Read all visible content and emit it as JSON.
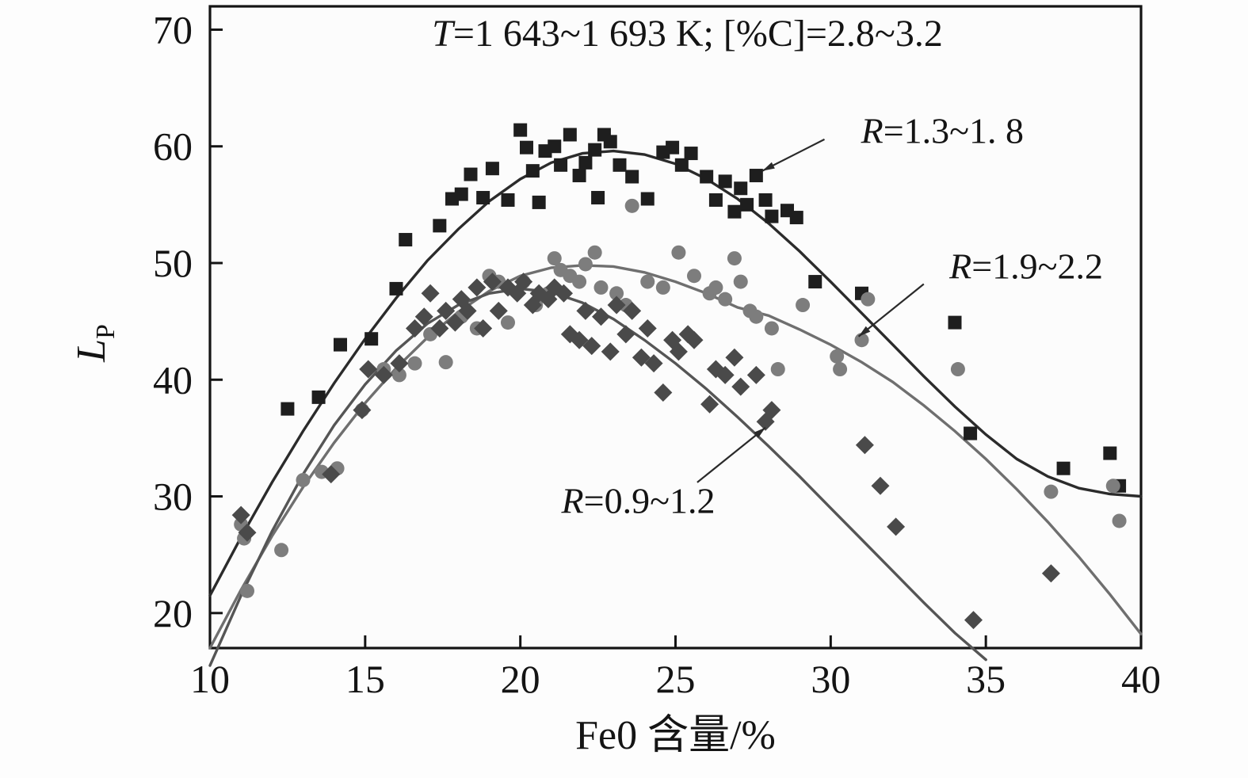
{
  "chart_data": {
    "type": "scatter",
    "title": "T=1 643~1 693 K;  [%C]=2.8~3.2",
    "xlabel": "Fe0 含量/%",
    "ylabel_main": "L",
    "ylabel_sub": "P",
    "xlim": [
      10,
      40
    ],
    "ylim": [
      17,
      72
    ],
    "xticks": [
      10,
      15,
      20,
      25,
      30,
      35,
      40
    ],
    "yticks": [
      20,
      30,
      40,
      50,
      60,
      70
    ],
    "grid": false,
    "legend_position": "annotated-arrows",
    "axis_color": "#141414",
    "series": [
      {
        "name": "R=1.3~1. 8",
        "marker": "square",
        "color": "#1e1e1e",
        "curve_color": "#2b2b2b",
        "points": [
          [
            12.5,
            37.5
          ],
          [
            13.5,
            38.5
          ],
          [
            14.2,
            43.0
          ],
          [
            15.2,
            43.5
          ],
          [
            16.0,
            47.8
          ],
          [
            16.3,
            52.0
          ],
          [
            17.4,
            53.2
          ],
          [
            17.8,
            55.5
          ],
          [
            18.1,
            55.9
          ],
          [
            18.4,
            57.6
          ],
          [
            18.8,
            55.6
          ],
          [
            19.1,
            58.1
          ],
          [
            19.6,
            55.4
          ],
          [
            20.0,
            61.4
          ],
          [
            20.2,
            59.9
          ],
          [
            20.4,
            57.9
          ],
          [
            20.6,
            55.2
          ],
          [
            20.8,
            59.6
          ],
          [
            21.1,
            60.0
          ],
          [
            21.3,
            58.4
          ],
          [
            21.6,
            61.0
          ],
          [
            21.9,
            57.5
          ],
          [
            22.1,
            58.6
          ],
          [
            22.4,
            59.7
          ],
          [
            22.5,
            55.6
          ],
          [
            22.7,
            61.0
          ],
          [
            22.9,
            60.4
          ],
          [
            23.2,
            58.4
          ],
          [
            23.6,
            57.4
          ],
          [
            24.1,
            55.5
          ],
          [
            24.6,
            59.5
          ],
          [
            24.9,
            59.9
          ],
          [
            25.2,
            58.4
          ],
          [
            25.5,
            59.4
          ],
          [
            26.0,
            57.4
          ],
          [
            26.3,
            55.4
          ],
          [
            26.6,
            57.0
          ],
          [
            26.9,
            54.4
          ],
          [
            27.1,
            56.4
          ],
          [
            27.3,
            55.0
          ],
          [
            27.6,
            57.5
          ],
          [
            27.9,
            55.4
          ],
          [
            28.1,
            54.0
          ],
          [
            28.6,
            54.5
          ],
          [
            28.9,
            53.9
          ],
          [
            29.5,
            48.4
          ],
          [
            31.0,
            47.4
          ],
          [
            34.0,
            44.9
          ],
          [
            34.5,
            35.4
          ],
          [
            37.5,
            32.4
          ],
          [
            39.0,
            33.7
          ],
          [
            39.3,
            30.9
          ]
        ],
        "curve": [
          [
            10,
            21.5
          ],
          [
            11,
            26.5
          ],
          [
            12,
            31.2
          ],
          [
            13,
            35.6
          ],
          [
            14,
            39.7
          ],
          [
            15,
            43.5
          ],
          [
            16,
            47.0
          ],
          [
            17,
            50.2
          ],
          [
            18,
            52.9
          ],
          [
            19,
            55.3
          ],
          [
            20,
            57.2
          ],
          [
            21,
            58.6
          ],
          [
            22,
            59.4
          ],
          [
            23,
            59.6
          ],
          [
            24,
            59.3
          ],
          [
            25,
            58.5
          ],
          [
            26,
            57.2
          ],
          [
            27,
            55.5
          ],
          [
            28,
            53.4
          ],
          [
            29,
            51.0
          ],
          [
            30,
            48.4
          ],
          [
            31,
            45.7
          ],
          [
            32,
            43.0
          ],
          [
            33,
            40.3
          ],
          [
            34,
            37.7
          ],
          [
            35,
            35.3
          ],
          [
            36,
            33.2
          ],
          [
            37,
            31.7
          ],
          [
            38,
            30.7
          ],
          [
            39,
            30.2
          ],
          [
            40,
            30.0
          ]
        ]
      },
      {
        "name": "R=1.9~2.2",
        "marker": "circle",
        "color": "#7d7d7d",
        "curve_color": "#6f6f6f",
        "points": [
          [
            11.0,
            27.6
          ],
          [
            11.1,
            26.4
          ],
          [
            11.2,
            21.9
          ],
          [
            12.3,
            25.4
          ],
          [
            13.0,
            31.4
          ],
          [
            13.6,
            32.1
          ],
          [
            14.1,
            32.4
          ],
          [
            14.9,
            37.4
          ],
          [
            15.6,
            40.9
          ],
          [
            16.1,
            40.4
          ],
          [
            16.6,
            41.4
          ],
          [
            17.1,
            43.9
          ],
          [
            17.6,
            41.5
          ],
          [
            18.1,
            45.4
          ],
          [
            18.6,
            44.4
          ],
          [
            19.0,
            48.9
          ],
          [
            19.3,
            48.4
          ],
          [
            19.6,
            44.9
          ],
          [
            20.1,
            48.4
          ],
          [
            20.5,
            46.4
          ],
          [
            20.9,
            47.4
          ],
          [
            21.1,
            50.4
          ],
          [
            21.3,
            49.4
          ],
          [
            21.6,
            48.9
          ],
          [
            21.9,
            48.4
          ],
          [
            22.1,
            49.9
          ],
          [
            22.4,
            50.9
          ],
          [
            22.6,
            47.9
          ],
          [
            23.1,
            47.4
          ],
          [
            23.4,
            46.4
          ],
          [
            23.6,
            54.9
          ],
          [
            24.1,
            48.4
          ],
          [
            24.6,
            47.9
          ],
          [
            25.1,
            50.9
          ],
          [
            25.6,
            48.9
          ],
          [
            26.1,
            47.4
          ],
          [
            26.3,
            47.9
          ],
          [
            26.6,
            46.9
          ],
          [
            26.9,
            50.4
          ],
          [
            27.1,
            48.4
          ],
          [
            27.4,
            45.9
          ],
          [
            27.6,
            45.4
          ],
          [
            28.1,
            44.4
          ],
          [
            28.3,
            40.9
          ],
          [
            29.1,
            46.4
          ],
          [
            30.2,
            42.0
          ],
          [
            30.3,
            40.9
          ],
          [
            31.0,
            43.4
          ],
          [
            31.2,
            46.9
          ],
          [
            34.1,
            40.9
          ],
          [
            37.1,
            30.4
          ],
          [
            39.1,
            30.9
          ],
          [
            39.3,
            27.9
          ]
        ],
        "curve": [
          [
            10,
            17.0
          ],
          [
            11,
            22.0
          ],
          [
            12,
            26.6
          ],
          [
            13,
            30.8
          ],
          [
            14,
            34.6
          ],
          [
            15,
            38.0
          ],
          [
            16,
            41.0
          ],
          [
            17,
            43.6
          ],
          [
            18,
            45.8
          ],
          [
            19,
            47.6
          ],
          [
            20,
            48.9
          ],
          [
            21,
            49.6
          ],
          [
            22,
            49.8
          ],
          [
            23,
            49.7
          ],
          [
            24,
            49.2
          ],
          [
            25,
            48.4
          ],
          [
            26,
            47.4
          ],
          [
            27,
            46.2
          ],
          [
            28,
            45.5
          ],
          [
            29,
            44.3
          ],
          [
            30,
            43.0
          ],
          [
            31,
            41.5
          ],
          [
            32,
            39.8
          ],
          [
            33,
            37.8
          ],
          [
            34,
            35.6
          ],
          [
            35,
            33.2
          ],
          [
            36,
            30.6
          ],
          [
            37,
            27.8
          ],
          [
            38,
            24.8
          ],
          [
            39,
            21.6
          ],
          [
            40,
            18.2
          ]
        ]
      },
      {
        "name": "R=0.9~1.2",
        "marker": "diamond",
        "color": "#4a4a4a",
        "curve_color": "#555555",
        "points": [
          [
            11.0,
            28.4
          ],
          [
            11.2,
            26.9
          ],
          [
            13.9,
            31.9
          ],
          [
            14.9,
            37.4
          ],
          [
            15.1,
            40.9
          ],
          [
            15.6,
            40.4
          ],
          [
            16.1,
            41.4
          ],
          [
            16.6,
            44.4
          ],
          [
            16.9,
            45.4
          ],
          [
            17.1,
            47.4
          ],
          [
            17.4,
            44.4
          ],
          [
            17.6,
            45.9
          ],
          [
            17.9,
            44.9
          ],
          [
            18.1,
            46.9
          ],
          [
            18.3,
            45.9
          ],
          [
            18.6,
            47.9
          ],
          [
            18.8,
            44.4
          ],
          [
            19.1,
            48.4
          ],
          [
            19.3,
            45.9
          ],
          [
            19.6,
            47.9
          ],
          [
            19.9,
            47.4
          ],
          [
            20.1,
            48.4
          ],
          [
            20.4,
            46.4
          ],
          [
            20.6,
            47.4
          ],
          [
            20.9,
            46.9
          ],
          [
            21.1,
            47.9
          ],
          [
            21.4,
            47.4
          ],
          [
            21.6,
            43.9
          ],
          [
            21.9,
            43.4
          ],
          [
            22.1,
            45.9
          ],
          [
            22.3,
            42.9
          ],
          [
            22.6,
            45.4
          ],
          [
            22.9,
            42.4
          ],
          [
            23.1,
            46.4
          ],
          [
            23.4,
            43.9
          ],
          [
            23.6,
            45.9
          ],
          [
            23.9,
            41.9
          ],
          [
            24.1,
            44.4
          ],
          [
            24.3,
            41.4
          ],
          [
            24.6,
            38.9
          ],
          [
            24.9,
            43.4
          ],
          [
            25.1,
            42.4
          ],
          [
            25.4,
            43.9
          ],
          [
            25.6,
            43.4
          ],
          [
            26.1,
            37.9
          ],
          [
            26.3,
            40.9
          ],
          [
            26.6,
            40.4
          ],
          [
            26.9,
            41.9
          ],
          [
            27.1,
            39.4
          ],
          [
            27.6,
            40.4
          ],
          [
            27.9,
            36.4
          ],
          [
            28.1,
            37.4
          ],
          [
            31.1,
            34.4
          ],
          [
            31.6,
            30.9
          ],
          [
            32.1,
            27.4
          ],
          [
            34.6,
            19.4
          ],
          [
            37.1,
            23.4
          ]
        ],
        "curve": [
          [
            10,
            15.5
          ],
          [
            11,
            21.5
          ],
          [
            12,
            27.0
          ],
          [
            13,
            31.9
          ],
          [
            14,
            36.1
          ],
          [
            15,
            39.6
          ],
          [
            16,
            42.5
          ],
          [
            17,
            44.8
          ],
          [
            18,
            46.4
          ],
          [
            19,
            47.4
          ],
          [
            20,
            47.8
          ],
          [
            21,
            47.5
          ],
          [
            22,
            46.6
          ],
          [
            23,
            45.2
          ],
          [
            24,
            43.4
          ],
          [
            25,
            41.4
          ],
          [
            26,
            39.2
          ],
          [
            27,
            36.8
          ],
          [
            28,
            34.3
          ],
          [
            29,
            31.7
          ],
          [
            30,
            29.0
          ],
          [
            31,
            26.3
          ],
          [
            32,
            23.6
          ],
          [
            33,
            20.9
          ],
          [
            34,
            18.3
          ],
          [
            35,
            16.0
          ]
        ]
      }
    ],
    "annotations": [
      {
        "text": "R=1.3~1. 8",
        "text_xy": [
          33.6,
          61.3
        ],
        "arrow_from": [
          29.8,
          60.6
        ],
        "arrow_to": [
          27.8,
          57.9
        ]
      },
      {
        "text": "R=1.9~2.2",
        "text_xy": [
          36.3,
          49.7
        ],
        "arrow_from": [
          33.0,
          48.2
        ],
        "arrow_to": [
          30.9,
          43.7
        ]
      },
      {
        "text": "R=0.9~1.2",
        "text_xy": [
          23.8,
          29.6
        ],
        "arrow_from": [
          25.7,
          31.2
        ],
        "arrow_to": [
          27.9,
          35.9
        ]
      }
    ]
  }
}
